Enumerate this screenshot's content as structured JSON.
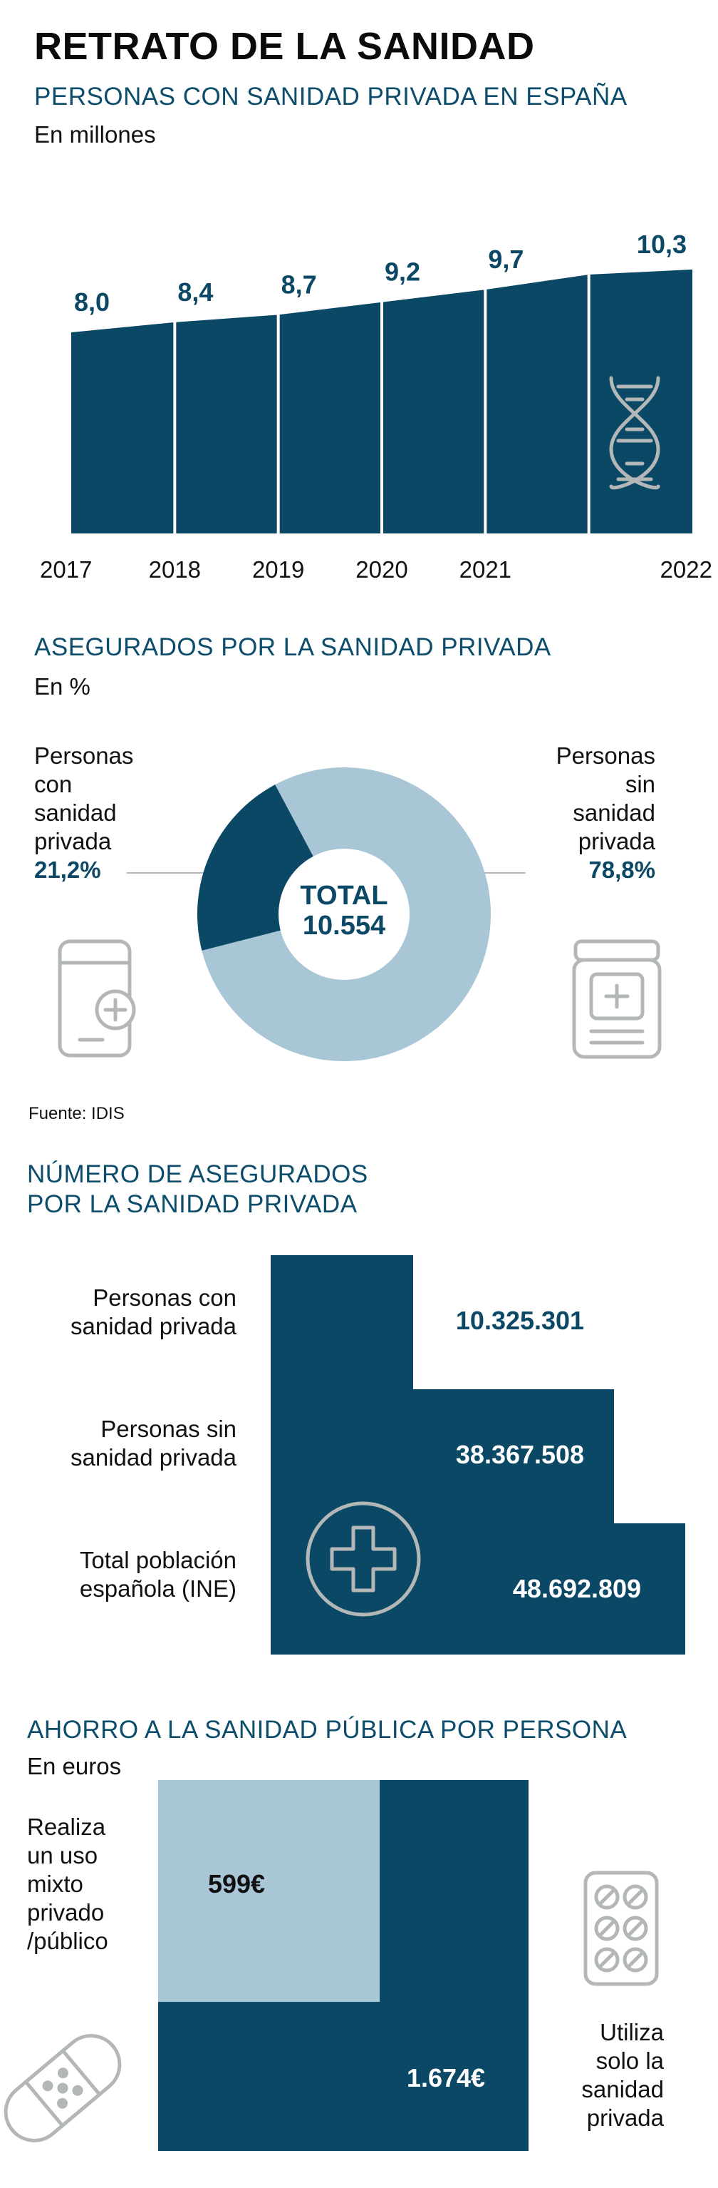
{
  "title": "RETRATO DE LA SANIDAD",
  "colors": {
    "navy": "#0b4866",
    "light": "#a9c6d6",
    "gray": "#b4b7b8"
  },
  "section1": {
    "title": "PERSONAS CON SANIDAD PRIVADA EN ESPAÑA",
    "unit": "En millones",
    "icon": "dna-icon"
  },
  "section2": {
    "title": "ASEGURADOS POR LA SANIDAD PRIVADA",
    "unit": "En %",
    "left_label": [
      "Personas",
      "con",
      "sanidad",
      "privada"
    ],
    "left_value": "21,2%",
    "right_label": [
      "Personas",
      "sin",
      "sanidad",
      "privada"
    ],
    "right_value": "78,8%",
    "center_label": "TOTAL",
    "center_value": "10.554",
    "left_icon": "mobile-health-icon",
    "right_icon": "medicine-jar-icon",
    "source": "Fuente: IDIS"
  },
  "section3": {
    "title_lines": [
      "NÚMERO DE ASEGURADOS",
      "POR LA SANIDAD PRIVADA"
    ],
    "rows": [
      {
        "label_lines": [
          "Personas con",
          "sanidad privada"
        ],
        "value": "10.325.301"
      },
      {
        "label_lines": [
          "Personas sin",
          "sanidad privada"
        ],
        "value": "38.367.508"
      },
      {
        "label_lines": [
          "Total población",
          "española (INE)"
        ],
        "value": "48.692.809"
      }
    ],
    "icon": "health-cross-icon"
  },
  "section4": {
    "title": "AHORRO A LA SANIDAD PÚBLICA POR PERSONA",
    "unit": "En euros",
    "left_label": [
      "Realiza",
      "un uso",
      "mixto",
      "privado",
      "/público"
    ],
    "right_label": [
      "Utiliza",
      "solo la",
      "sanidad",
      "privada"
    ],
    "small_value": "599€",
    "big_value": "1.674€",
    "left_icon": "bandage-icon",
    "right_icon": "pill-pack-icon"
  },
  "chart_data": [
    {
      "type": "area",
      "title": "PERSONAS CON SANIDAD PRIVADA EN ESPAÑA",
      "ylabel": "En millones",
      "categories": [
        "2017",
        "2018",
        "2019",
        "2020",
        "2021",
        "2022"
      ],
      "values": [
        8.0,
        8.4,
        8.7,
        9.2,
        9.7,
        10.3
      ],
      "value_labels": [
        "8,0",
        "8,4",
        "8,7",
        "9,2",
        "9,7",
        "10,3"
      ],
      "grid": false
    },
    {
      "type": "pie",
      "title": "ASEGURADOS POR LA SANIDAD PRIVADA",
      "ylabel": "En %",
      "categories": [
        "Personas con sanidad privada",
        "Personas sin sanidad privada"
      ],
      "values": [
        21.2,
        78.8
      ]
    },
    {
      "type": "bar",
      "title": "NÚMERO DE ASEGURADOS POR LA SANIDAD PRIVADA",
      "categories": [
        "Personas con sanidad privada",
        "Personas sin sanidad privada",
        "Total población española (INE)"
      ],
      "values": [
        10325301,
        38367508,
        48692809
      ]
    },
    {
      "type": "bar",
      "title": "AHORRO A LA SANIDAD PÚBLICA POR PERSONA",
      "ylabel": "En euros",
      "categories": [
        "Realiza un uso mixto privado/público",
        "Utiliza solo la sanidad privada"
      ],
      "values": [
        599,
        1674
      ]
    }
  ]
}
